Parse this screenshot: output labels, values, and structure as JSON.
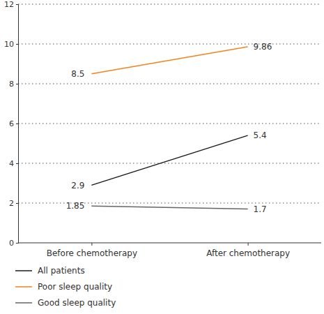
{
  "chart_data": {
    "type": "line",
    "categories": [
      "Before chemotherapy",
      "After chemotherapy"
    ],
    "series": [
      {
        "name": "All patients",
        "color": "#1a1a1a",
        "values": [
          2.9,
          5.4
        ]
      },
      {
        "name": "Poor sleep quality",
        "color": "#f5821f",
        "values": [
          8.5,
          9.86
        ]
      },
      {
        "name": "Good sleep quality",
        "color": "#666666",
        "values": [
          1.85,
          1.7
        ]
      }
    ],
    "ylim": [
      0,
      12
    ],
    "yticks": [
      0,
      2,
      4,
      6,
      8,
      10,
      12
    ],
    "grid": true,
    "data_labels": true,
    "legend": "bottom"
  }
}
